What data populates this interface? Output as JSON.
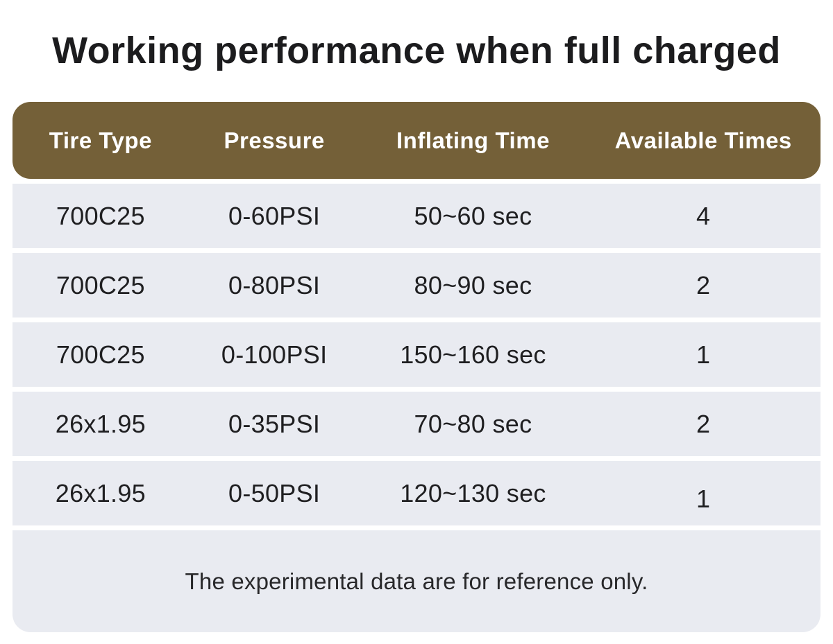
{
  "chart_data": {
    "type": "table",
    "title": "Working performance when full charged",
    "columns": [
      "Tire Type",
      "Pressure",
      "Inflating Time",
      "Available Times"
    ],
    "rows": [
      [
        "700C25",
        "0-60PSI",
        "50~60 sec",
        "4"
      ],
      [
        "700C25",
        "0-80PSI",
        "80~90 sec",
        "2"
      ],
      [
        "700C25",
        "0-100PSI",
        "150~160 sec",
        "1"
      ],
      [
        "26x1.95",
        "0-35PSI",
        "70~80 sec",
        "2"
      ],
      [
        "26x1.95",
        "0-50PSI",
        "120~130 sec",
        "1"
      ]
    ],
    "note": "The experimental data are for reference only.",
    "layout": {
      "legend": "none",
      "grid": "off",
      "header_position": "top"
    }
  },
  "colors": {
    "header_bg": "#746038",
    "header_text": "#ffffff",
    "row_bg": "#e9ebf1",
    "body_text": "#1f1f21",
    "title_text": "#1c1c1e",
    "page_bg": "#ffffff"
  }
}
